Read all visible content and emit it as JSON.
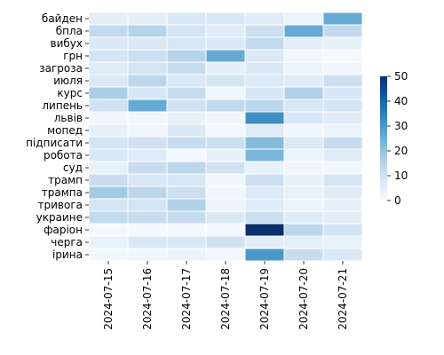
{
  "chart_data": {
    "type": "heatmap",
    "title": "",
    "xlabel": "",
    "ylabel": "",
    "x": [
      "2024-07-15",
      "2024-07-16",
      "2024-07-17",
      "2024-07-18",
      "2024-07-19",
      "2024-07-20",
      "2024-07-21"
    ],
    "y": [
      "байден",
      "бпла",
      "вибух",
      "грн",
      "загроза",
      "июля",
      "курс",
      "липень",
      "львів",
      "мопед",
      "підписати",
      "робота",
      "суд",
      "трамп",
      "трампа",
      "тривога",
      "украине",
      "фаріон",
      "черга",
      "ірина"
    ],
    "values": [
      [
        5,
        5,
        7,
        8,
        6,
        3,
        26
      ],
      [
        13,
        15,
        9,
        6,
        11,
        26,
        13
      ],
      [
        7,
        7,
        8,
        7,
        13,
        5,
        4
      ],
      [
        9,
        11,
        15,
        26,
        7,
        2,
        1
      ],
      [
        6,
        9,
        12,
        5,
        7,
        3,
        2
      ],
      [
        7,
        14,
        8,
        9,
        7,
        6,
        11
      ],
      [
        17,
        8,
        12,
        2,
        8,
        16,
        8
      ],
      [
        10,
        26,
        10,
        13,
        14,
        8,
        9
      ],
      [
        2,
        2,
        4,
        2,
        32,
        8,
        6
      ],
      [
        4,
        2,
        7,
        1,
        6,
        2,
        3
      ],
      [
        9,
        10,
        12,
        11,
        22,
        7,
        12
      ],
      [
        8,
        6,
        1,
        4,
        23,
        3,
        6
      ],
      [
        4,
        12,
        14,
        10,
        4,
        2,
        2
      ],
      [
        12,
        8,
        8,
        2,
        11,
        4,
        9
      ],
      [
        18,
        14,
        11,
        2,
        7,
        4,
        6
      ],
      [
        9,
        9,
        16,
        3,
        6,
        3,
        4
      ],
      [
        13,
        12,
        12,
        7,
        11,
        6,
        5
      ],
      [
        1,
        1,
        1,
        1,
        50,
        14,
        9
      ],
      [
        4,
        8,
        8,
        10,
        5,
        5,
        4
      ],
      [
        1,
        2,
        3,
        1,
        30,
        12,
        7
      ]
    ],
    "colorbar": {
      "min": 0,
      "max": 50,
      "ticks": [
        0,
        10,
        20,
        30,
        40,
        50
      ],
      "colormap": "Blues"
    },
    "grid_lines": "white"
  }
}
